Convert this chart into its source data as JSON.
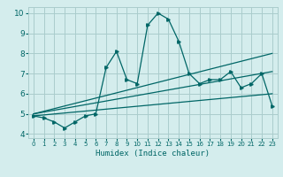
{
  "xlabel": "Humidex (Indice chaleur)",
  "bg_color": "#d4eded",
  "grid_color": "#aacccc",
  "line_color": "#006666",
  "xlim": [
    -0.5,
    23.5
  ],
  "ylim": [
    3.8,
    10.3
  ],
  "xticks": [
    0,
    1,
    2,
    3,
    4,
    5,
    6,
    7,
    8,
    9,
    10,
    11,
    12,
    13,
    14,
    15,
    16,
    17,
    18,
    19,
    20,
    21,
    22,
    23
  ],
  "yticks": [
    4,
    5,
    6,
    7,
    8,
    9,
    10
  ],
  "series1_x": [
    0,
    1,
    2,
    3,
    4,
    5,
    6,
    7,
    8,
    9,
    10,
    11,
    12,
    13,
    14,
    15,
    16,
    17,
    18,
    19,
    20,
    21,
    22,
    23
  ],
  "series1_y": [
    4.9,
    4.8,
    4.6,
    4.3,
    4.6,
    4.9,
    5.0,
    7.3,
    8.1,
    6.7,
    6.5,
    9.4,
    10.0,
    9.7,
    8.6,
    7.0,
    6.5,
    6.7,
    6.7,
    7.1,
    6.3,
    6.5,
    7.0,
    5.4
  ],
  "series2_x": [
    0,
    23
  ],
  "series2_y": [
    4.9,
    6.0
  ],
  "series3_x": [
    0,
    23
  ],
  "series3_y": [
    5.0,
    7.1
  ],
  "series4_x": [
    0,
    23
  ],
  "series4_y": [
    5.0,
    8.0
  ]
}
